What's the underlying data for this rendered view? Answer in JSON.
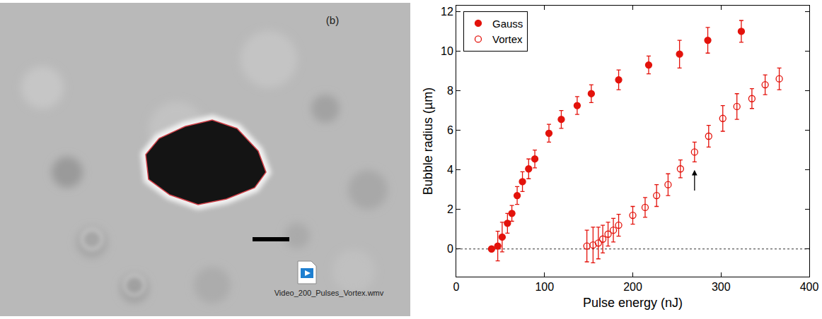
{
  "image": {
    "label": "(b)",
    "file_caption": "Video_200_Pulses_Vortex.wmv"
  },
  "chart_data": {
    "type": "scatter",
    "x_label": "Pulse energy (nJ)",
    "y_label": "Bubble radius (µm)",
    "xlim": [
      0,
      400
    ],
    "xticks": [
      0,
      100,
      200,
      300,
      400
    ],
    "ylim": [
      -1.4,
      12.3
    ],
    "yticks": [
      0,
      2,
      4,
      6,
      8,
      10,
      12
    ],
    "grid": false,
    "legend": "upper left",
    "series": [
      {
        "name": "Gauss",
        "color": "#e3120b",
        "marker": "filled_circle",
        "x": [
          40,
          47,
          52,
          58,
          63,
          69,
          75,
          82,
          89,
          105,
          119,
          137,
          153,
          184,
          218,
          253,
          285,
          323
        ],
        "values": [
          0,
          0.15,
          0.6,
          1.3,
          1.8,
          2.7,
          3.4,
          4.05,
          4.55,
          5.85,
          6.55,
          7.25,
          7.85,
          8.55,
          9.3,
          9.85,
          10.55,
          11.0
        ],
        "error": [
          0,
          0.75,
          0.75,
          0.5,
          0.4,
          0.45,
          0.5,
          0.5,
          0.45,
          0.45,
          0.45,
          0.45,
          0.45,
          0.5,
          0.45,
          0.7,
          0.65,
          0.55
        ]
      },
      {
        "name": "Vortex",
        "color": "#e3120b",
        "marker": "open_circle",
        "x": [
          148,
          155,
          161,
          166,
          172,
          178,
          184,
          200,
          214,
          227,
          240,
          254,
          270,
          286,
          302,
          318,
          335,
          350,
          366
        ],
        "values": [
          0.15,
          0.2,
          0.3,
          0.5,
          0.75,
          0.95,
          1.2,
          1.7,
          2.1,
          2.7,
          3.25,
          4.05,
          4.9,
          5.7,
          6.6,
          7.2,
          7.6,
          8.3,
          8.6
        ],
        "error": [
          0.8,
          0.9,
          0.8,
          0.7,
          0.6,
          0.6,
          0.55,
          0.45,
          0.5,
          0.55,
          0.55,
          0.45,
          0.5,
          0.55,
          0.65,
          0.65,
          0.5,
          0.5,
          0.55
        ]
      }
    ],
    "reference_line": {
      "y": 0,
      "line_style": "dotted"
    },
    "arrow": {
      "x": 270,
      "y_from": 2.9,
      "y_to": 4.0
    }
  }
}
